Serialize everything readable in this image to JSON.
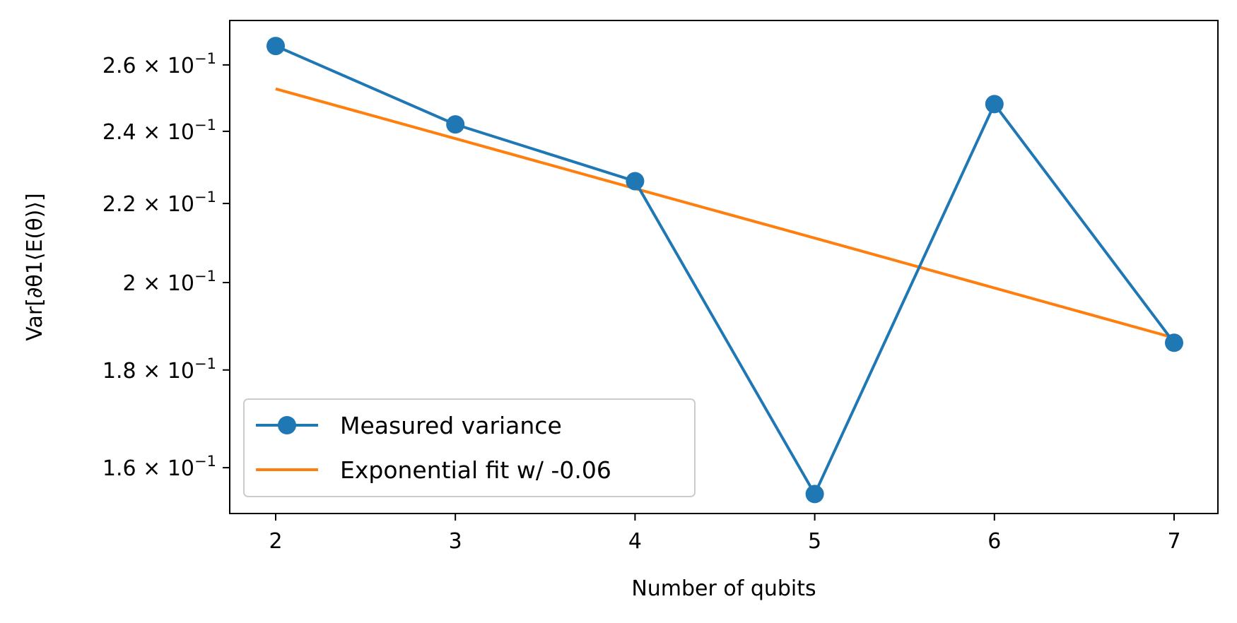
{
  "chart_data": {
    "type": "line",
    "title": "",
    "xlabel": "Number of qubits",
    "ylabel": "Var[∂θ1⟨E(θ)⟩]",
    "y_scale": "log",
    "x": [
      2,
      3,
      4,
      5,
      6,
      7
    ],
    "xlim": [
      1.75,
      7.25
    ],
    "ylim": [
      0.1514,
      0.2743
    ],
    "grid": false,
    "legend_position": "lower-left",
    "x_ticks": [
      {
        "value": 2,
        "label": "2"
      },
      {
        "value": 3,
        "label": "3"
      },
      {
        "value": 4,
        "label": "4"
      },
      {
        "value": 5,
        "label": "5"
      },
      {
        "value": 6,
        "label": "6"
      },
      {
        "value": 7,
        "label": "7"
      }
    ],
    "y_ticks": [
      {
        "value": 0.16,
        "mantissa": "1.6",
        "exponent": "−1"
      },
      {
        "value": 0.18,
        "mantissa": "1.8",
        "exponent": "−1"
      },
      {
        "value": 0.2,
        "mantissa": "2",
        "exponent": "−1"
      },
      {
        "value": 0.22,
        "mantissa": "2.2",
        "exponent": "−1"
      },
      {
        "value": 0.24,
        "mantissa": "2.4",
        "exponent": "−1"
      },
      {
        "value": 0.26,
        "mantissa": "2.6",
        "exponent": "−1"
      }
    ],
    "series": [
      {
        "name": "Measured variance",
        "color": "#1f77b4",
        "marker": "circle",
        "values": [
          0.266,
          0.242,
          0.226,
          0.155,
          0.248,
          0.186
        ]
      },
      {
        "name": "Exponential fit w/ -0.06",
        "color": "#ff7f0e",
        "marker": "none",
        "values": [
          0.2526,
          0.2379,
          0.224,
          0.211,
          0.1987,
          0.1871
        ]
      }
    ]
  }
}
